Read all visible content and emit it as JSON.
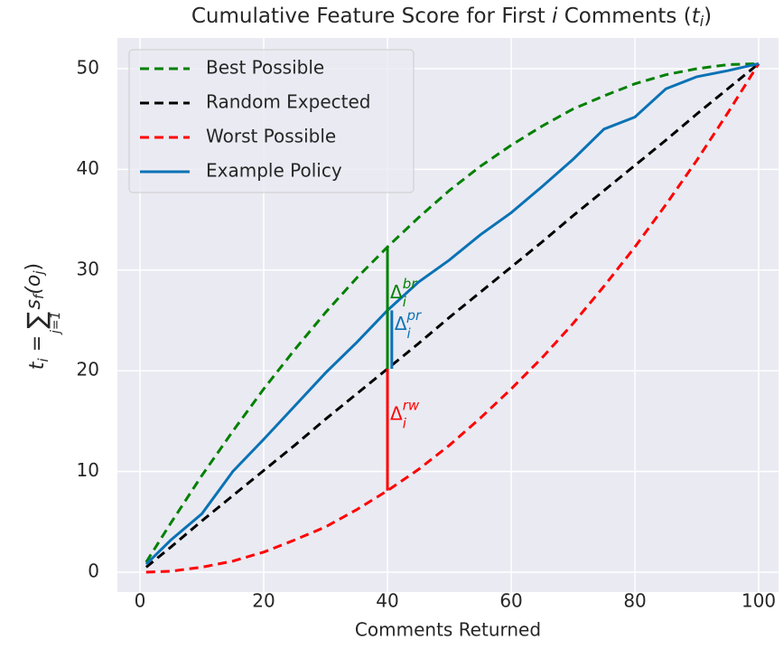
{
  "chart_data": {
    "type": "line",
    "title_parts": [
      "Cumulative Feature Score for First ",
      "i",
      " Comments (",
      "t",
      "i",
      ")"
    ],
    "xlabel": "Comments Returned",
    "ylabel_parts": [
      "t",
      "i",
      " = ",
      "∑",
      "j=1",
      "s",
      "f",
      "(o",
      "j",
      ")"
    ],
    "x": [
      1,
      5,
      10,
      15,
      20,
      25,
      30,
      35,
      40,
      45,
      50,
      55,
      60,
      65,
      70,
      75,
      80,
      85,
      90,
      95,
      100
    ],
    "series": [
      {
        "name": "Best Possible",
        "color": "#008000",
        "dash": true,
        "values": [
          1.0,
          4.9,
          9.6,
          14.0,
          18.2,
          22.1,
          25.8,
          29.2,
          32.3,
          35.2,
          37.9,
          40.3,
          42.4,
          44.3,
          46.0,
          47.3,
          48.5,
          49.4,
          50.0,
          50.4,
          50.5
        ]
      },
      {
        "name": "Random Expected",
        "color": "#000000",
        "dash": true,
        "values": [
          0.5,
          2.5,
          5.1,
          7.6,
          10.1,
          12.6,
          15.2,
          17.7,
          20.2,
          22.7,
          25.3,
          27.8,
          30.3,
          32.8,
          35.4,
          37.9,
          40.4,
          42.9,
          45.5,
          48.0,
          50.5
        ]
      },
      {
        "name": "Worst Possible",
        "color": "#ff0000",
        "dash": true,
        "values": [
          0.0,
          0.1,
          0.5,
          1.1,
          2.0,
          3.2,
          4.5,
          6.2,
          8.1,
          10.2,
          12.6,
          15.3,
          18.2,
          21.3,
          24.7,
          28.4,
          32.3,
          36.5,
          40.9,
          45.6,
          50.5
        ]
      },
      {
        "name": "Example Policy",
        "color": "#0a72b5",
        "dash": false,
        "values": [
          0.8,
          3.2,
          5.8,
          10.0,
          13.2,
          16.5,
          19.8,
          22.8,
          26.0,
          28.8,
          31.0,
          33.5,
          35.7,
          38.3,
          41.0,
          44.0,
          45.2,
          48.0,
          49.2,
          49.8,
          50.5
        ]
      }
    ],
    "annotations": [
      {
        "base": "Δ",
        "sub": "i",
        "sup": "br",
        "x": 40,
        "y_from": 20.2,
        "y_to": 32.3,
        "color": "#008000"
      },
      {
        "base": "Δ",
        "sub": "i",
        "sup": "pr",
        "x": 40.7,
        "y_from": 20.2,
        "y_to": 26.0,
        "color": "#0a72b5"
      },
      {
        "base": "Δ",
        "sub": "i",
        "sup": "rw",
        "x": 40,
        "y_from": 8.1,
        "y_to": 20.2,
        "color": "#ff0000"
      }
    ],
    "xlim": [
      -3.65,
      103.2
    ],
    "ylim": [
      -1.97,
      53.05
    ],
    "xticks": [
      0,
      20,
      40,
      60,
      80,
      100
    ],
    "yticks": [
      0,
      10,
      20,
      30,
      40,
      50
    ],
    "grid": true,
    "legend": "upper left"
  }
}
